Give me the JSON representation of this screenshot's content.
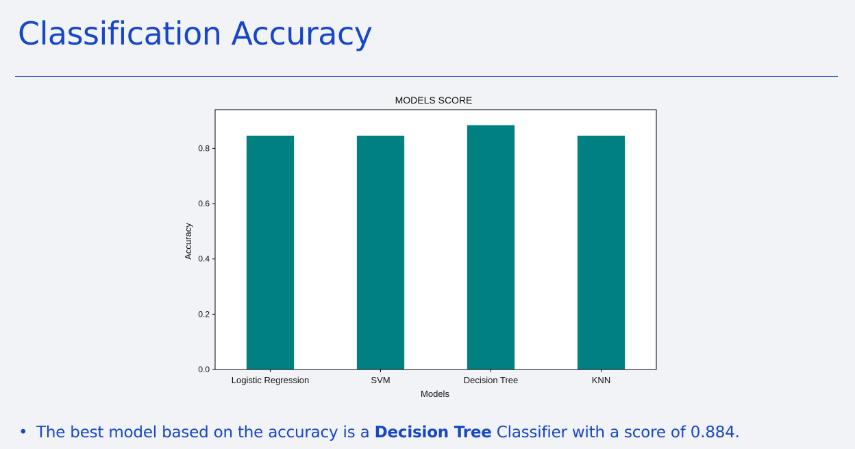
{
  "slide": {
    "title": "Classification Accuracy",
    "bullet": {
      "prefix": "The best model based on the accuracy is a ",
      "highlight": "Decision Tree",
      "suffix": " Classifier with a score of 0.884."
    }
  },
  "colors": {
    "title": "#1746c8",
    "bar": "#008080",
    "rule": "#2a58c9"
  },
  "chart_data": {
    "type": "bar",
    "title": "MODELS SCORE",
    "xlabel": "Models",
    "ylabel": "Accuracy",
    "categories": [
      "Logistic Regression",
      "SVM",
      "Decision Tree",
      "KNN"
    ],
    "values": [
      0.846,
      0.846,
      0.884,
      0.846
    ],
    "ylim": [
      0,
      0.94
    ],
    "yticks": [
      "0.0",
      "0.2",
      "0.4",
      "0.6",
      "0.8"
    ],
    "grid": false
  }
}
